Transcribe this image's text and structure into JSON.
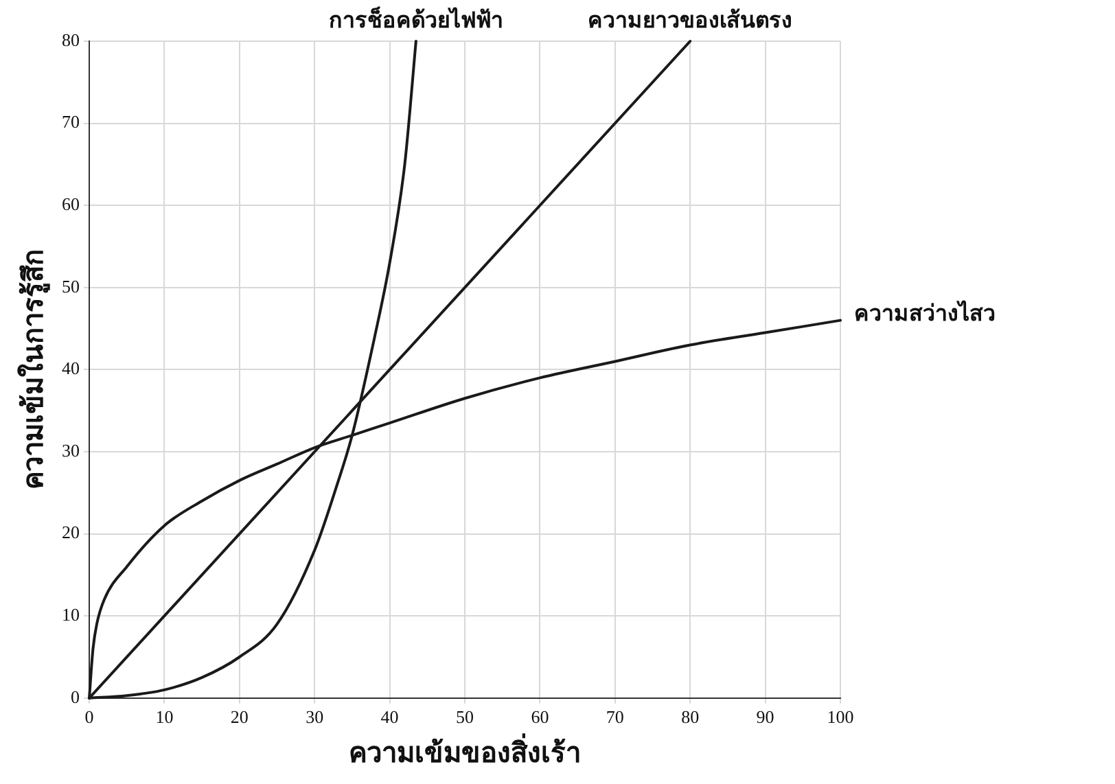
{
  "chart_data": {
    "type": "line",
    "xlabel": "ความเข้มของสิ่งเร้า",
    "ylabel": "ความเข้มในการรู้สึก",
    "xlim": [
      0,
      100
    ],
    "ylim": [
      0,
      80
    ],
    "xticks": [
      0,
      10,
      20,
      30,
      40,
      50,
      60,
      70,
      80,
      90,
      100
    ],
    "yticks": [
      0,
      10,
      20,
      30,
      40,
      50,
      60,
      70,
      80
    ],
    "grid": true,
    "legend": false,
    "marker": "none",
    "line_style": "solid",
    "series": [
      {
        "name": "การช็อคด้วยไฟฟ้า",
        "color": "#1a1a1a",
        "x": [
          0,
          5,
          10,
          15,
          20,
          25,
          30,
          33,
          35,
          38,
          40,
          42,
          43.5
        ],
        "values": [
          0,
          0.3,
          1,
          2.5,
          5,
          9,
          18,
          26,
          32,
          44,
          53,
          65,
          80
        ]
      },
      {
        "name": "ความยาวของเส้นตรง",
        "color": "#1a1a1a",
        "x": [
          0,
          80
        ],
        "values": [
          0,
          80
        ]
      },
      {
        "name": "ความสว่างไสว",
        "color": "#1a1a1a",
        "x": [
          0,
          0.5,
          1,
          2,
          5,
          10,
          15,
          20,
          25,
          30,
          35,
          40,
          50,
          60,
          70,
          80,
          90,
          100
        ],
        "values": [
          0,
          6,
          9,
          12,
          16,
          21,
          24,
          26.5,
          28.5,
          30.5,
          32,
          33.5,
          36.5,
          39,
          41,
          43,
          44.5,
          46
        ]
      }
    ]
  }
}
